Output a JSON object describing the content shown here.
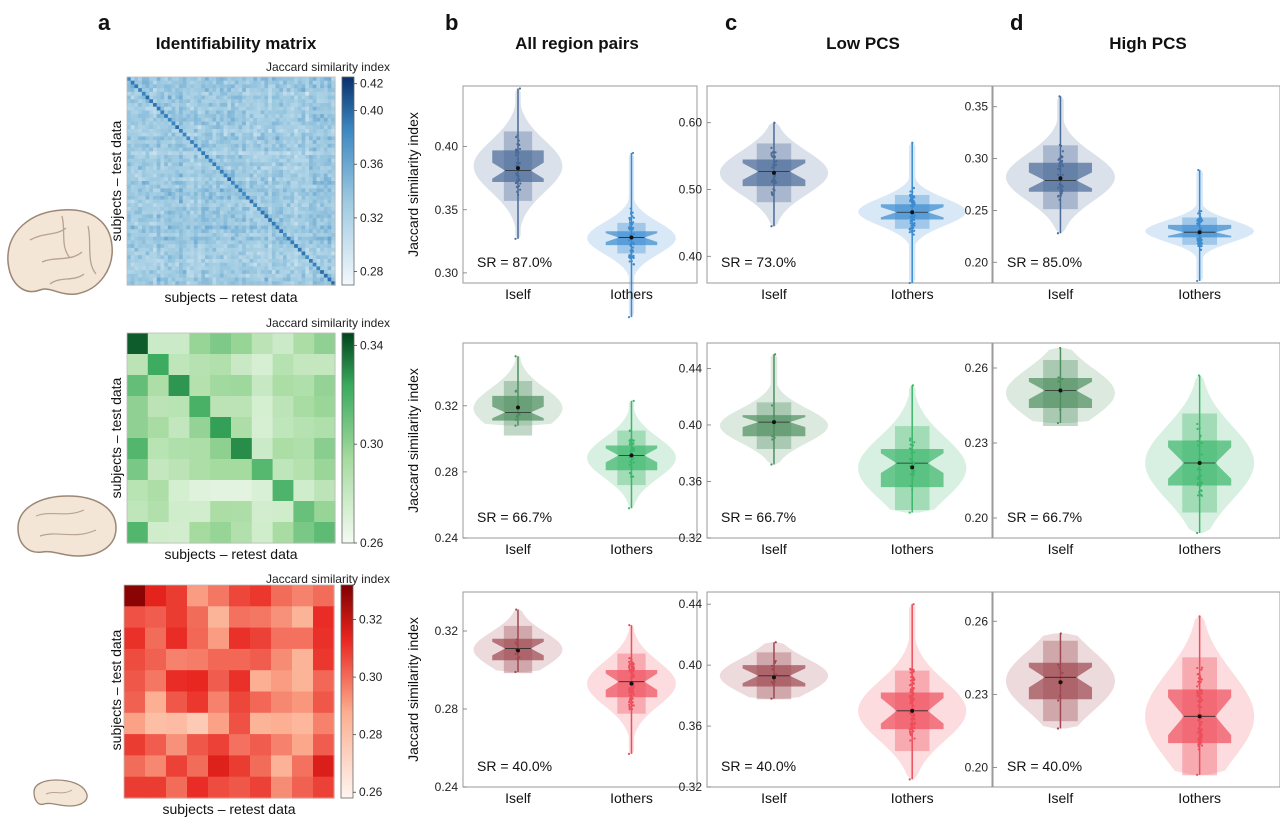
{
  "figure": {
    "panel_labels": [
      "a",
      "b",
      "c",
      "d"
    ],
    "column_titles": [
      "Identifiability matrix",
      "All region pairs",
      "Low PCS",
      "High PCS"
    ]
  },
  "colors": {
    "blue_dark": "#08306b",
    "blue_light": "#f1f7fd",
    "green_dark": "#00441b",
    "green_light": "#f3fbf1",
    "red_dark": "#7f0000",
    "red_light": "#fff3ef",
    "row_colors": {
      "blue": {
        "self": "#4a6a97",
        "others": "#3b8bd0"
      },
      "green": {
        "self": "#4e8f60",
        "others": "#3cb66b"
      },
      "red": {
        "self": "#9e4750",
        "others": "#ee4e5c"
      }
    }
  },
  "chart_data": [
    {
      "type": "heatmap",
      "title": "Identifiability matrix",
      "row": 1,
      "xlabel": "subjects – retest data",
      "ylabel": "subjects – test data",
      "colorbar_label": "Jaccard similarity index",
      "colormap": "Blues",
      "n": 56,
      "vmin": 0.27,
      "vmax": 0.425,
      "colorbar_ticks": [
        0.28,
        0.32,
        0.36,
        0.4,
        0.42
      ],
      "diagonal_mean": 0.39,
      "offdiagonal_mean": 0.33,
      "offdiagonal_sd": 0.02
    },
    {
      "type": "heatmap",
      "row": 2,
      "xlabel": "subjects – retest data",
      "ylabel": "subjects – test data",
      "colorbar_label": "Jaccard similarity index",
      "colormap": "Greens",
      "vmin": 0.26,
      "vmax": 0.345,
      "colorbar_ticks": [
        0.26,
        0.3,
        0.34
      ],
      "values": [
        [
          0.34,
          0.278,
          0.278,
          0.298,
          0.305,
          0.298,
          0.285,
          0.278,
          0.292,
          0.3
        ],
        [
          0.285,
          0.323,
          0.283,
          0.287,
          0.289,
          0.279,
          0.273,
          0.287,
          0.281,
          0.281
        ],
        [
          0.312,
          0.291,
          0.328,
          0.288,
          0.295,
          0.296,
          0.28,
          0.292,
          0.29,
          0.299
        ],
        [
          0.3,
          0.285,
          0.286,
          0.32,
          0.285,
          0.285,
          0.274,
          0.284,
          0.293,
          0.297
        ],
        [
          0.3,
          0.293,
          0.282,
          0.299,
          0.326,
          0.291,
          0.273,
          0.283,
          0.287,
          0.29
        ],
        [
          0.317,
          0.286,
          0.29,
          0.291,
          0.301,
          0.33,
          0.278,
          0.292,
          0.29,
          0.302
        ],
        [
          0.306,
          0.281,
          0.285,
          0.291,
          0.294,
          0.294,
          0.316,
          0.283,
          0.288,
          0.297
        ],
        [
          0.286,
          0.291,
          0.274,
          0.269,
          0.268,
          0.268,
          0.272,
          0.318,
          0.276,
          0.284
        ],
        [
          0.283,
          0.289,
          0.276,
          0.275,
          0.292,
          0.291,
          0.275,
          0.276,
          0.311,
          0.298
        ],
        [
          0.317,
          0.276,
          0.275,
          0.294,
          0.298,
          0.289,
          0.276,
          0.293,
          0.306,
          0.314
        ]
      ]
    },
    {
      "type": "heatmap",
      "row": 3,
      "xlabel": "subjects – retest data",
      "ylabel": "subjects – test data",
      "colorbar_label": "Jaccard similarity index",
      "colormap": "Reds",
      "vmin": 0.258,
      "vmax": 0.332,
      "colorbar_ticks": [
        0.26,
        0.28,
        0.3,
        0.32
      ],
      "values": [
        [
          0.33,
          0.314,
          0.309,
          0.291,
          0.298,
          0.307,
          0.31,
          0.3,
          0.296,
          0.3
        ],
        [
          0.305,
          0.303,
          0.309,
          0.3,
          0.285,
          0.299,
          0.298,
          0.293,
          0.285,
          0.312
        ],
        [
          0.311,
          0.3,
          0.312,
          0.301,
          0.291,
          0.311,
          0.308,
          0.299,
          0.299,
          0.311
        ],
        [
          0.306,
          0.302,
          0.296,
          0.297,
          0.301,
          0.301,
          0.303,
          0.294,
          0.285,
          0.31
        ],
        [
          0.304,
          0.298,
          0.312,
          0.313,
          0.303,
          0.311,
          0.287,
          0.291,
          0.285,
          0.301
        ],
        [
          0.302,
          0.287,
          0.304,
          0.31,
          0.296,
          0.307,
          0.301,
          0.295,
          0.292,
          0.304
        ],
        [
          0.29,
          0.281,
          0.282,
          0.276,
          0.29,
          0.305,
          0.285,
          0.287,
          0.284,
          0.296
        ],
        [
          0.309,
          0.303,
          0.293,
          0.304,
          0.308,
          0.299,
          0.303,
          0.296,
          0.289,
          0.303
        ],
        [
          0.3,
          0.295,
          0.308,
          0.3,
          0.315,
          0.309,
          0.3,
          0.286,
          0.299,
          0.316
        ],
        [
          0.309,
          0.309,
          0.3,
          0.312,
          0.306,
          0.304,
          0.308,
          0.294,
          0.302,
          0.308
        ]
      ]
    },
    {
      "type": "violin",
      "row": 1,
      "col": 1,
      "title": "All region pairs",
      "ylabel": "Jaccard similarity index",
      "ylim": [
        0.292,
        0.448
      ],
      "yticks": [
        0.3,
        0.35,
        0.4
      ],
      "categories": [
        "Iself",
        "Iothers"
      ],
      "annotation": "SR = 87.0%",
      "groups": [
        {
          "label": "Iself",
          "min": 0.327,
          "q1": 0.372,
          "median": 0.381,
          "q3": 0.397,
          "max": 0.446,
          "mean": 0.383,
          "n": 40
        },
        {
          "label": "Iothers",
          "min": 0.265,
          "q1": 0.322,
          "median": 0.328,
          "q3": 0.333,
          "max": 0.395,
          "mean": 0.328,
          "n": 60
        }
      ]
    },
    {
      "type": "violin",
      "row": 1,
      "col": 2,
      "title": "Low PCS",
      "ylim": [
        0.36,
        0.655
      ],
      "yticks": [
        0.4,
        0.5,
        0.6
      ],
      "categories": [
        "Iself",
        "Iothers"
      ],
      "annotation": "SR = 73.0%",
      "groups": [
        {
          "label": "Iself",
          "min": 0.445,
          "q1": 0.505,
          "median": 0.527,
          "q3": 0.545,
          "max": 0.6,
          "mean": 0.525,
          "n": 40
        },
        {
          "label": "Iothers",
          "min": 0.36,
          "q1": 0.455,
          "median": 0.466,
          "q3": 0.478,
          "max": 0.57,
          "mean": 0.466,
          "n": 60
        }
      ]
    },
    {
      "type": "violin",
      "row": 1,
      "col": 3,
      "title": "High PCS",
      "ylim": [
        0.18,
        0.37
      ],
      "yticks": [
        0.2,
        0.25,
        0.3,
        0.35
      ],
      "categories": [
        "Iself",
        "Iothers"
      ],
      "annotation": "SR = 85.0%",
      "groups": [
        {
          "label": "Iself",
          "min": 0.228,
          "q1": 0.268,
          "median": 0.279,
          "q3": 0.296,
          "max": 0.36,
          "mean": 0.281,
          "n": 40
        },
        {
          "label": "Iothers",
          "min": 0.182,
          "q1": 0.224,
          "median": 0.229,
          "q3": 0.236,
          "max": 0.289,
          "mean": 0.229,
          "n": 60
        }
      ]
    },
    {
      "type": "violin",
      "row": 2,
      "col": 1,
      "ylabel": "Jaccard similarity index",
      "ylim": [
        0.24,
        0.358
      ],
      "yticks": [
        0.24,
        0.28,
        0.32
      ],
      "categories": [
        "Iself",
        "Iothers"
      ],
      "annotation": "SR = 66.7%",
      "groups": [
        {
          "label": "Iself",
          "min": 0.308,
          "q1": 0.311,
          "median": 0.316,
          "q3": 0.326,
          "max": 0.35,
          "mean": 0.319,
          "n": 9
        },
        {
          "label": "Iothers",
          "min": 0.258,
          "q1": 0.281,
          "median": 0.29,
          "q3": 0.296,
          "max": 0.323,
          "mean": 0.29,
          "n": 36
        }
      ]
    },
    {
      "type": "violin",
      "row": 2,
      "col": 2,
      "ylim": [
        0.32,
        0.458
      ],
      "yticks": [
        0.32,
        0.36,
        0.4,
        0.44
      ],
      "categories": [
        "Iself",
        "Iothers"
      ],
      "annotation": "SR = 66.7%",
      "groups": [
        {
          "label": "Iself",
          "min": 0.372,
          "q1": 0.392,
          "median": 0.402,
          "q3": 0.407,
          "max": 0.45,
          "mean": 0.402,
          "n": 9
        },
        {
          "label": "Iothers",
          "min": 0.338,
          "q1": 0.356,
          "median": 0.373,
          "q3": 0.383,
          "max": 0.428,
          "mean": 0.37,
          "n": 36
        }
      ]
    },
    {
      "type": "violin",
      "row": 2,
      "col": 3,
      "ylim": [
        0.192,
        0.27
      ],
      "yticks": [
        0.2,
        0.23,
        0.26
      ],
      "categories": [
        "Iself",
        "Iothers"
      ],
      "annotation": "SR = 66.7%",
      "groups": [
        {
          "label": "Iself",
          "min": 0.238,
          "q1": 0.244,
          "median": 0.251,
          "q3": 0.256,
          "max": 0.268,
          "mean": 0.251,
          "n": 9
        },
        {
          "label": "Iothers",
          "min": 0.194,
          "q1": 0.213,
          "median": 0.222,
          "q3": 0.231,
          "max": 0.257,
          "mean": 0.222,
          "n": 36
        }
      ]
    },
    {
      "type": "violin",
      "row": 3,
      "col": 1,
      "ylabel": "Jaccard similarity index",
      "ylim": [
        0.24,
        0.34
      ],
      "yticks": [
        0.24,
        0.28,
        0.32
      ],
      "categories": [
        "Iself",
        "Iothers"
      ],
      "annotation": "SR = 40.0%",
      "groups": [
        {
          "label": "Iself",
          "min": 0.299,
          "q1": 0.305,
          "median": 0.311,
          "q3": 0.316,
          "max": 0.331,
          "mean": 0.31,
          "n": 10
        },
        {
          "label": "Iothers",
          "min": 0.257,
          "q1": 0.286,
          "median": 0.294,
          "q3": 0.3,
          "max": 0.323,
          "mean": 0.293,
          "n": 90
        }
      ]
    },
    {
      "type": "violin",
      "row": 3,
      "col": 2,
      "ylim": [
        0.32,
        0.448
      ],
      "yticks": [
        0.32,
        0.36,
        0.4,
        0.44
      ],
      "categories": [
        "Iself",
        "Iothers"
      ],
      "annotation": "SR = 40.0%",
      "groups": [
        {
          "label": "Iself",
          "min": 0.378,
          "q1": 0.386,
          "median": 0.393,
          "q3": 0.4,
          "max": 0.415,
          "mean": 0.392,
          "n": 10
        },
        {
          "label": "Iothers",
          "min": 0.325,
          "q1": 0.358,
          "median": 0.37,
          "q3": 0.382,
          "max": 0.44,
          "mean": 0.37,
          "n": 90
        }
      ]
    },
    {
      "type": "violin",
      "row": 3,
      "col": 3,
      "ylim": [
        0.192,
        0.272
      ],
      "yticks": [
        0.2,
        0.23,
        0.26
      ],
      "categories": [
        "Iself",
        "Iothers"
      ],
      "annotation": "SR = 40.0%",
      "groups": [
        {
          "label": "Iself",
          "min": 0.216,
          "q1": 0.228,
          "median": 0.237,
          "q3": 0.243,
          "max": 0.255,
          "mean": 0.235,
          "n": 10
        },
        {
          "label": "Iothers",
          "min": 0.197,
          "q1": 0.21,
          "median": 0.221,
          "q3": 0.232,
          "max": 0.262,
          "mean": 0.221,
          "n": 90
        }
      ]
    }
  ]
}
